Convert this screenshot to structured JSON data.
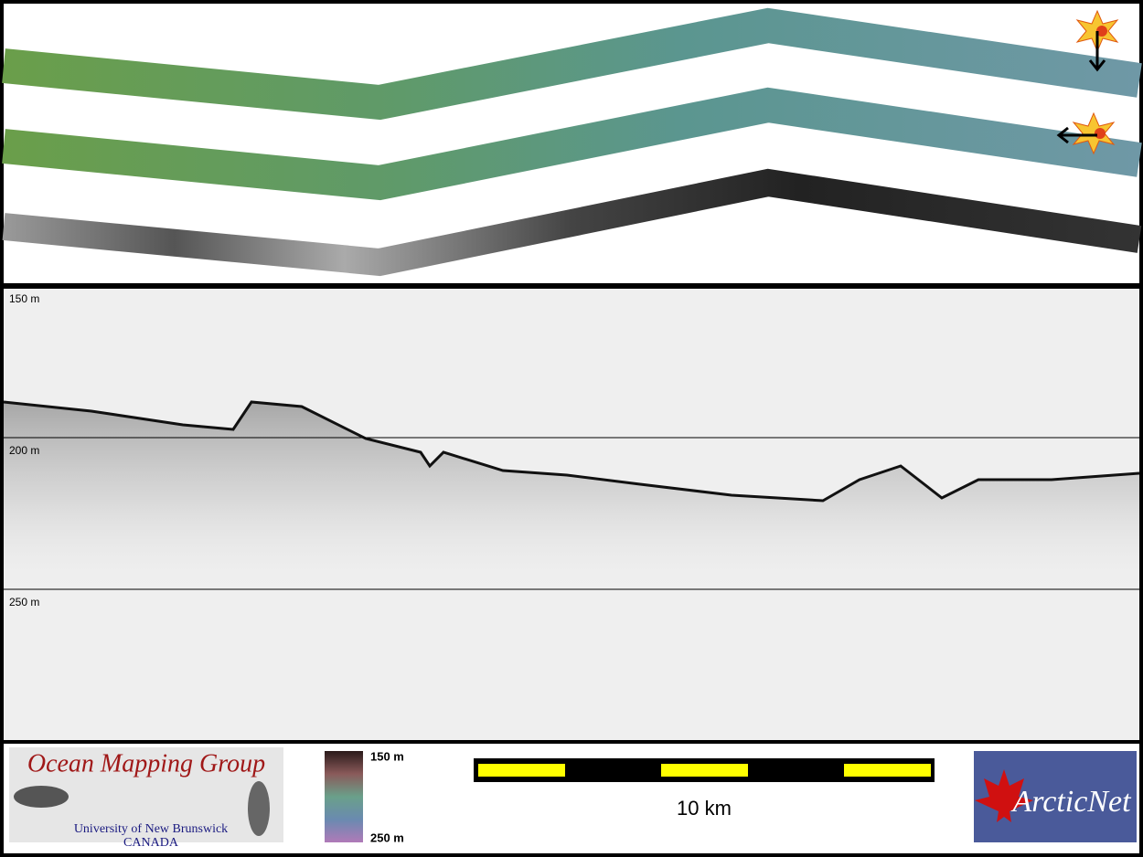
{
  "depth_labels": [
    "150 m",
    "200 m",
    "250 m"
  ],
  "logo_left": {
    "title": "Ocean Mapping Group",
    "line1": "University of New Brunswick",
    "line2": "CANADA"
  },
  "colorbar": {
    "top": "150 m",
    "bottom": "250 m"
  },
  "scale_bar": {
    "label": "10 km"
  },
  "logo_right": {
    "title": "ArcticNet"
  }
}
